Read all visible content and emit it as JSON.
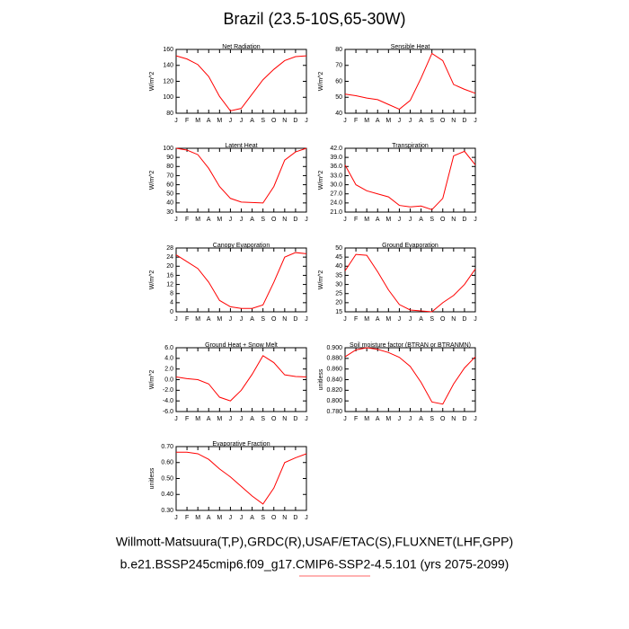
{
  "title": "Brazil (23.5-10S,65-30W)",
  "footer": [
    "Willmott-Matsuura(T,P),GRDC(R),USAF/ETAC(S),FLUXNET(LHF,GPP)",
    "b.e21.BSSP245cmip6.f09_g17.CMIP6-SSP2-4.5.101 (yrs 2075-2099)"
  ],
  "chart_data": [
    {
      "type": "line",
      "title": "Net Radiation",
      "y_label": "W/m^2",
      "color": "#ff0000",
      "categories": [
        "J",
        "F",
        "M",
        "A",
        "M",
        "J",
        "J",
        "A",
        "S",
        "O",
        "N",
        "D",
        "J"
      ],
      "values": [
        152,
        148,
        141,
        126,
        101,
        83,
        86,
        104,
        122,
        135,
        146,
        151,
        152
      ],
      "ylim": [
        80,
        160
      ],
      "yticks": [
        80,
        100,
        120,
        140,
        160
      ]
    },
    {
      "type": "line",
      "title": "Sensible Heat",
      "y_label": "W/m^2",
      "color": "#ff0000",
      "categories": [
        "J",
        "F",
        "M",
        "A",
        "M",
        "J",
        "J",
        "A",
        "S",
        "O",
        "N",
        "D",
        "J"
      ],
      "values": [
        52,
        51,
        49.5,
        48.5,
        45.5,
        42.5,
        48,
        62,
        77.5,
        73,
        58,
        55,
        52.5
      ],
      "ylim": [
        40,
        80
      ],
      "yticks": [
        40,
        50,
        60,
        70,
        80
      ]
    },
    {
      "type": "line",
      "title": "Latent Heat",
      "y_label": "W/m^2",
      "color": "#ff0000",
      "categories": [
        "J",
        "F",
        "M",
        "A",
        "M",
        "J",
        "J",
        "A",
        "S",
        "O",
        "N",
        "D",
        "J"
      ],
      "values": [
        100,
        98,
        93,
        78,
        58,
        45,
        41,
        40.5,
        40,
        58,
        87,
        96,
        100
      ],
      "ylim": [
        30,
        100
      ],
      "yticks": [
        30,
        40,
        50,
        60,
        70,
        80,
        90,
        100
      ]
    },
    {
      "type": "line",
      "title": "Transpiration",
      "y_label": "W/m^2",
      "color": "#ff0000",
      "categories": [
        "J",
        "F",
        "M",
        "A",
        "M",
        "J",
        "J",
        "A",
        "S",
        "O",
        "N",
        "D",
        "J"
      ],
      "values": [
        36.5,
        30,
        28,
        27,
        26,
        23.2,
        22.7,
        23,
        21.8,
        25.5,
        39.5,
        41,
        36.5
      ],
      "ylim": [
        21,
        42
      ],
      "yticks": [
        {
          "value": 21,
          "label": "21.0"
        },
        {
          "value": 24,
          "label": "24.0"
        },
        {
          "value": 27,
          "label": "27.0"
        },
        {
          "value": 30,
          "label": "30.0"
        },
        {
          "value": 33,
          "label": "33.0"
        },
        {
          "value": 36,
          "label": "36.0"
        },
        {
          "value": 39,
          "label": "39.0"
        },
        {
          "value": 42,
          "label": "42.0"
        }
      ]
    },
    {
      "type": "line",
      "title": "Canopy Evaporation",
      "y_label": "W/m^2",
      "color": "#ff0000",
      "categories": [
        "J",
        "F",
        "M",
        "A",
        "M",
        "J",
        "J",
        "A",
        "S",
        "O",
        "N",
        "D",
        "J"
      ],
      "values": [
        25,
        22,
        19,
        13,
        5,
        2.2,
        1.5,
        1.5,
        3,
        13,
        24,
        26,
        25.5
      ],
      "ylim": [
        0,
        28
      ],
      "yticks": [
        0,
        4,
        8,
        12,
        16,
        20,
        24,
        28
      ]
    },
    {
      "type": "line",
      "title": "Ground Evaporation",
      "y_label": "W/m^2",
      "color": "#ff0000",
      "categories": [
        "J",
        "F",
        "M",
        "A",
        "M",
        "J",
        "J",
        "A",
        "S",
        "O",
        "N",
        "D",
        "J"
      ],
      "values": [
        37.5,
        46.5,
        46,
        37,
        27,
        19,
        16,
        15.5,
        15,
        20,
        24,
        30,
        38.5
      ],
      "ylim": [
        15,
        50
      ],
      "yticks": [
        15,
        20,
        25,
        30,
        35,
        40,
        45,
        50
      ]
    },
    {
      "type": "line",
      "title": "Ground Heat + Snow Melt",
      "y_label": "W/m^2",
      "color": "#ff0000",
      "categories": [
        "J",
        "F",
        "M",
        "A",
        "M",
        "J",
        "J",
        "A",
        "S",
        "O",
        "N",
        "D",
        "J"
      ],
      "values": [
        0.5,
        0.2,
        0,
        -0.8,
        -3.3,
        -4,
        -2,
        1,
        4.5,
        3.2,
        0.9,
        0.6,
        0.5
      ],
      "ylim": [
        -6,
        6
      ],
      "yticks": [
        {
          "value": -6,
          "label": "-6.0"
        },
        {
          "value": -4,
          "label": "-4.0"
        },
        {
          "value": -2,
          "label": "-2.0"
        },
        {
          "value": 0,
          "label": "0.0"
        },
        {
          "value": 2,
          "label": "2.0"
        },
        {
          "value": 4,
          "label": "4.0"
        },
        {
          "value": 6,
          "label": "6.0"
        }
      ]
    },
    {
      "type": "line",
      "title": "Soil moisture factor (BTRAN or BTRANMN)",
      "y_label": "unitless",
      "color": "#ff0000",
      "categories": [
        "J",
        "F",
        "M",
        "A",
        "M",
        "J",
        "J",
        "A",
        "S",
        "O",
        "N",
        "D",
        "J"
      ],
      "values": [
        0.883,
        0.896,
        0.9,
        0.897,
        0.891,
        0.882,
        0.865,
        0.835,
        0.798,
        0.794,
        0.832,
        0.862,
        0.883
      ],
      "ylim": [
        0.78,
        0.9
      ],
      "yticks": [
        {
          "value": 0.78,
          "label": "0.780"
        },
        {
          "value": 0.8,
          "label": "0.800"
        },
        {
          "value": 0.82,
          "label": "0.820"
        },
        {
          "value": 0.84,
          "label": "0.840"
        },
        {
          "value": 0.86,
          "label": "0.860"
        },
        {
          "value": 0.88,
          "label": "0.880"
        },
        {
          "value": 0.9,
          "label": "0.900"
        }
      ]
    },
    {
      "type": "line",
      "title": "Evaporative Fraction",
      "y_label": "unitless",
      "color": "#ff0000",
      "categories": [
        "J",
        "F",
        "M",
        "A",
        "M",
        "J",
        "J",
        "A",
        "S",
        "O",
        "N",
        "D",
        "J"
      ],
      "values": [
        0.665,
        0.665,
        0.655,
        0.62,
        0.56,
        0.51,
        0.45,
        0.39,
        0.34,
        0.44,
        0.6,
        0.63,
        0.655
      ],
      "ylim": [
        0.3,
        0.7
      ],
      "yticks": [
        {
          "value": 0.3,
          "label": "0.30"
        },
        {
          "value": 0.4,
          "label": "0.40"
        },
        {
          "value": 0.5,
          "label": "0.50"
        },
        {
          "value": 0.6,
          "label": "0.60"
        },
        {
          "value": 0.7,
          "label": "0.70"
        }
      ]
    }
  ]
}
